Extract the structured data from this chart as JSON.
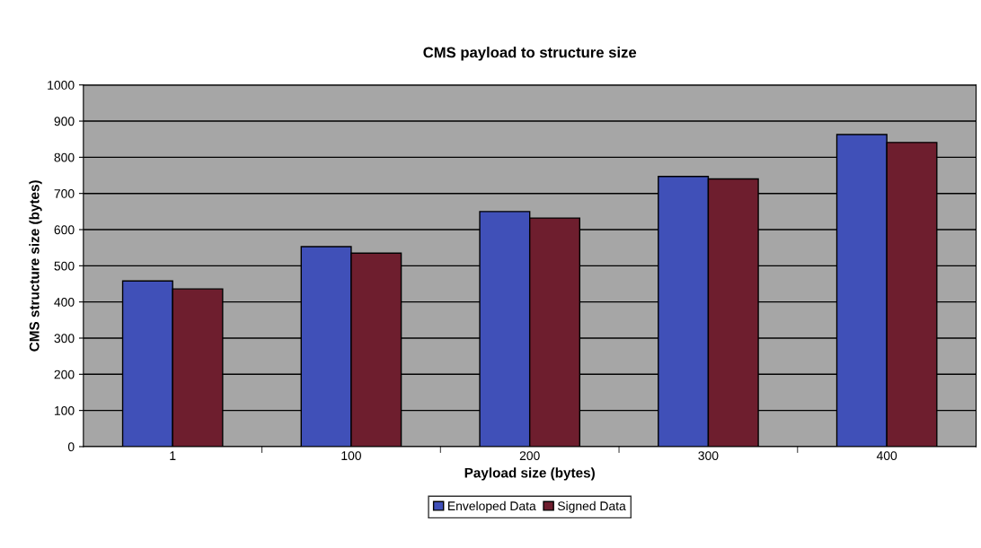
{
  "chart_data": {
    "type": "bar",
    "title": "CMS payload to structure size",
    "xlabel": "Payload size (bytes)",
    "ylabel": "CMS structure size (bytes)",
    "categories": [
      "1",
      "100",
      "200",
      "300",
      "400"
    ],
    "series": [
      {
        "name": "Enveloped Data",
        "color": "#4050b8",
        "values": [
          458,
          553,
          650,
          747,
          863
        ]
      },
      {
        "name": "Signed Data",
        "color": "#6e1e2e",
        "values": [
          436,
          535,
          632,
          740,
          841
        ]
      }
    ],
    "ylim": [
      0,
      1000
    ],
    "yticks": [
      0,
      100,
      200,
      300,
      400,
      500,
      600,
      700,
      800,
      900,
      1000
    ],
    "grid": "y",
    "legend": "bottom"
  }
}
